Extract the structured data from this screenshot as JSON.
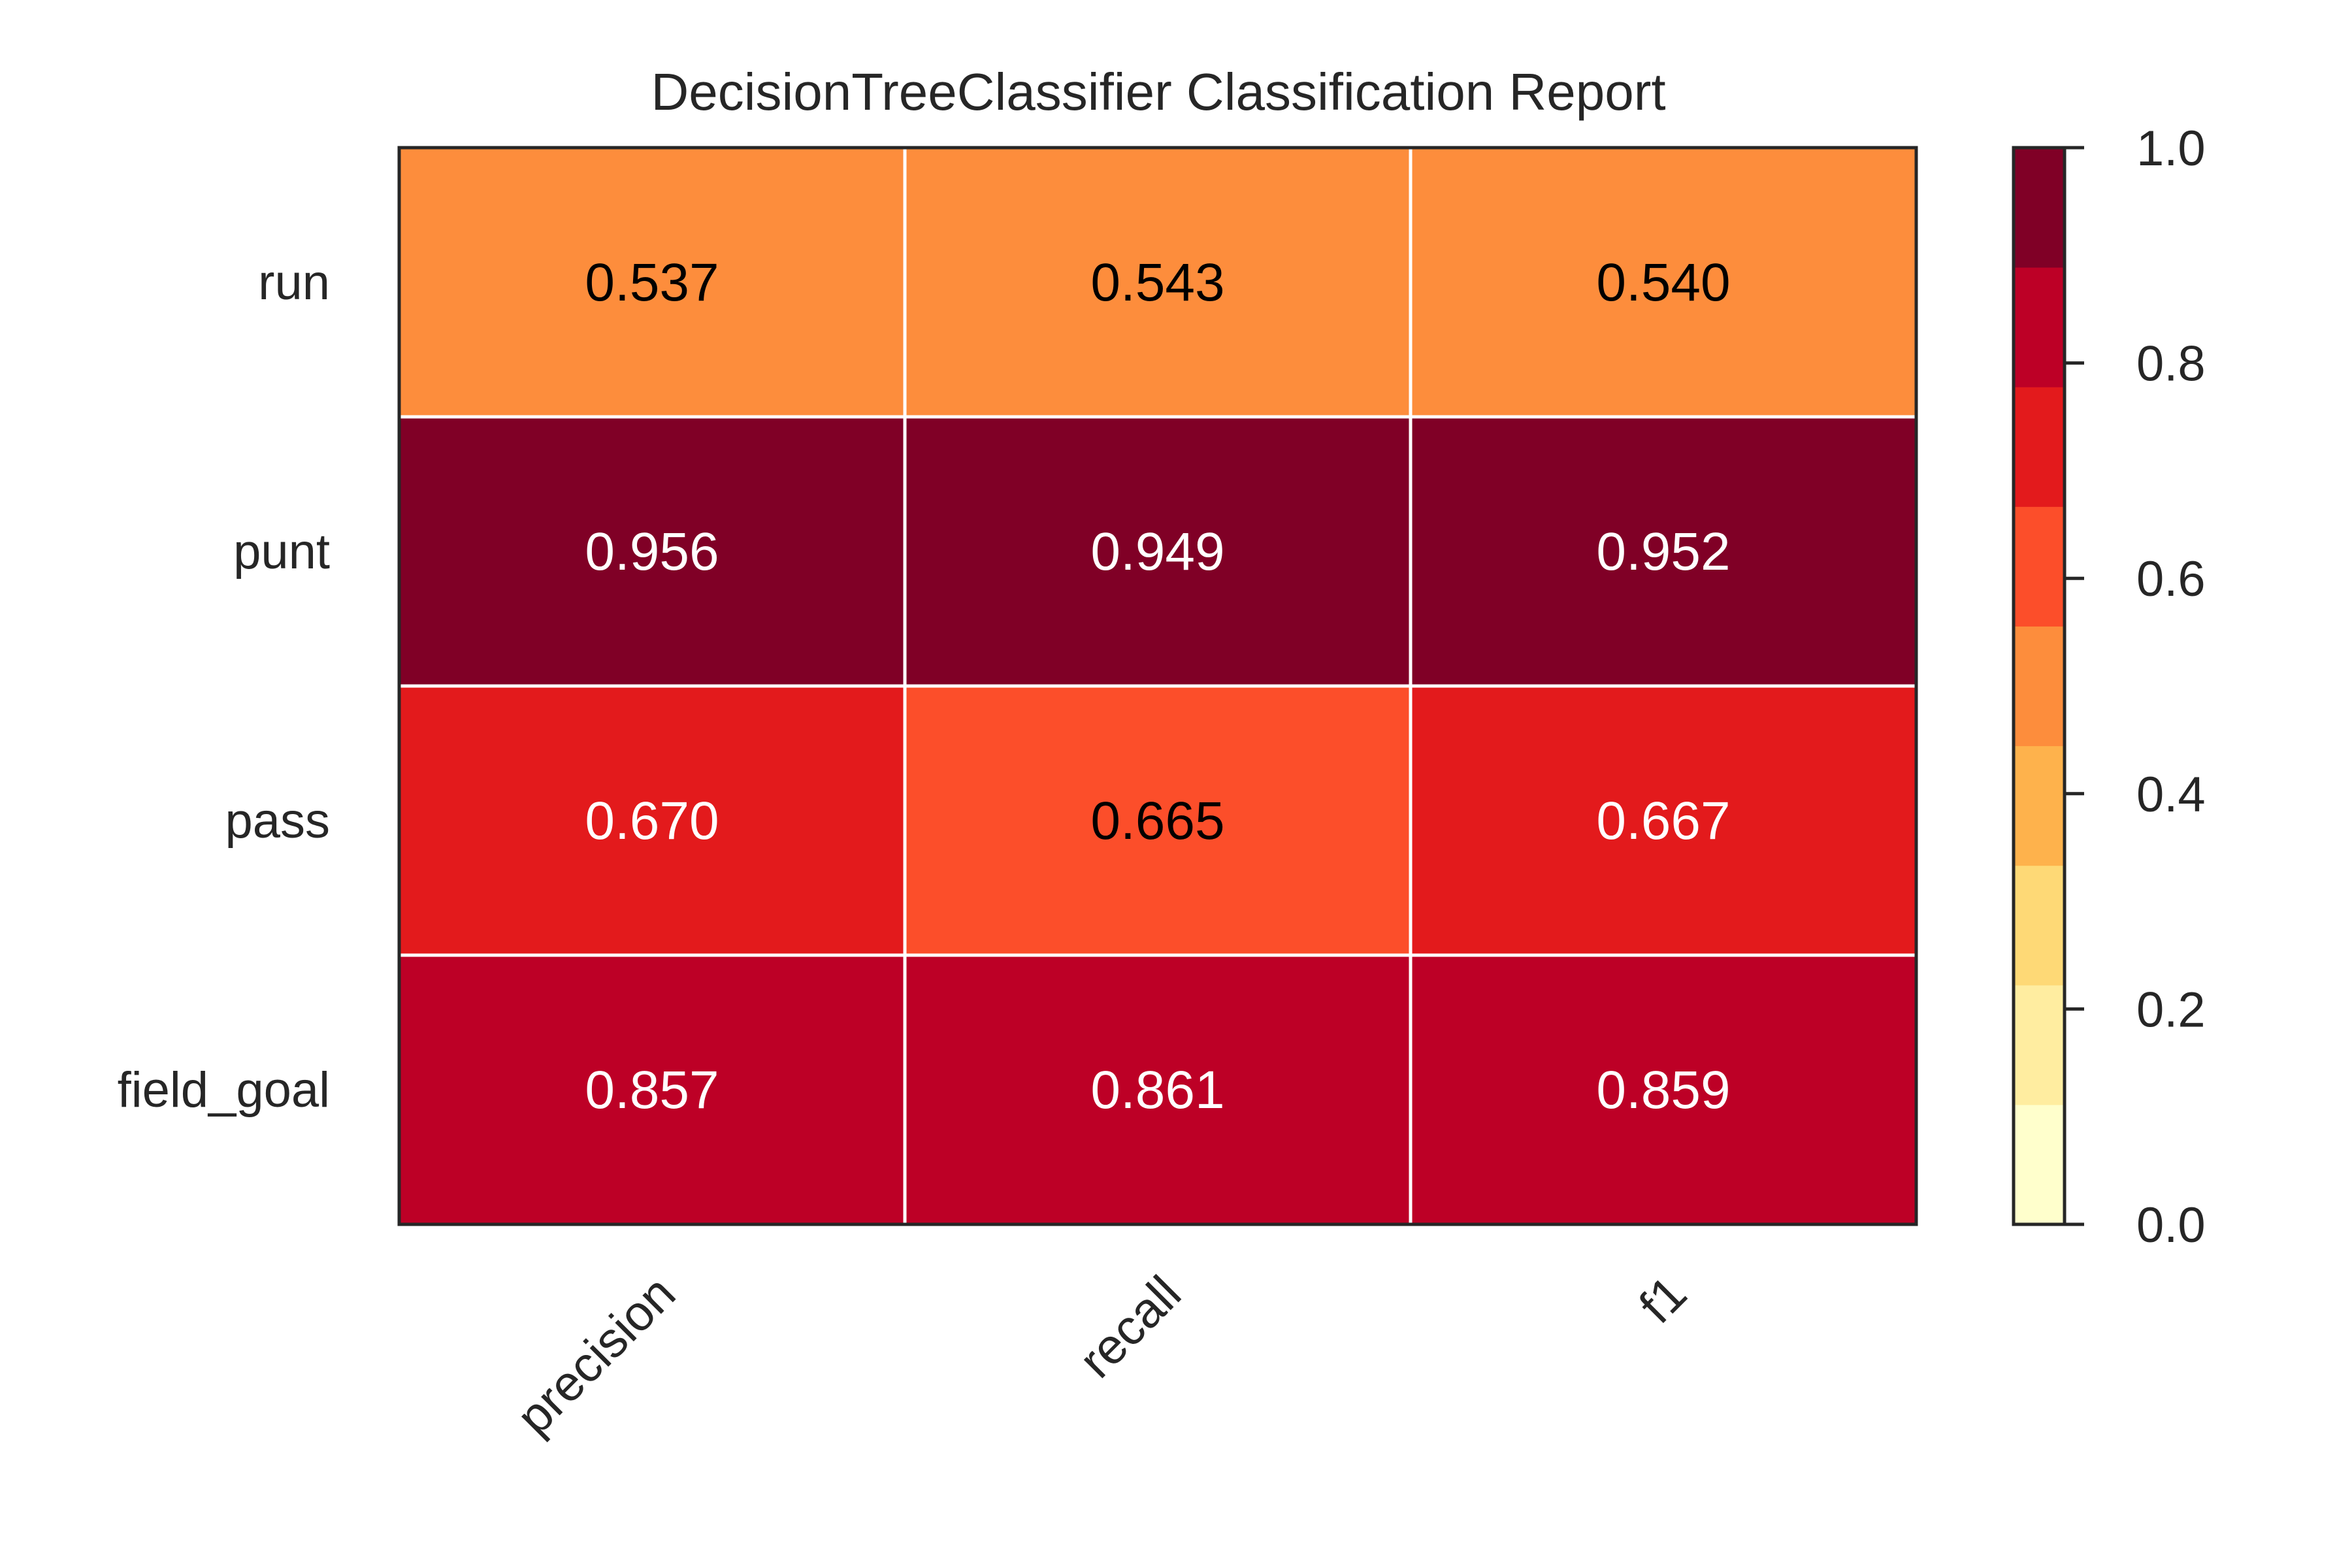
{
  "chart_data": {
    "type": "heatmap",
    "title": "DecisionTreeClassifier Classification Report",
    "rows": [
      "run",
      "punt",
      "pass",
      "field_goal"
    ],
    "columns": [
      "precision",
      "recall",
      "f1"
    ],
    "values": [
      [
        0.537,
        0.543,
        0.54
      ],
      [
        0.956,
        0.949,
        0.952
      ],
      [
        0.67,
        0.665,
        0.667
      ],
      [
        0.857,
        0.861,
        0.859
      ]
    ],
    "value_labels": [
      [
        "0.537",
        "0.543",
        "0.540"
      ],
      [
        "0.956",
        "0.949",
        "0.952"
      ],
      [
        "0.670",
        "0.665",
        "0.667"
      ],
      [
        "0.857",
        "0.861",
        "0.859"
      ]
    ],
    "colorbar": {
      "range": [
        0.0,
        1.0
      ],
      "ticks": [
        "0.0",
        "0.2",
        "0.4",
        "0.6",
        "0.8",
        "1.0"
      ],
      "bins": [
        "#ffffcc",
        "#ffeda0",
        "#fed976",
        "#feb24c",
        "#fd8d3c",
        "#fc4e2a",
        "#e31a1c",
        "#bd0026",
        "#800026"
      ]
    },
    "colormap": "YlOrRd"
  }
}
